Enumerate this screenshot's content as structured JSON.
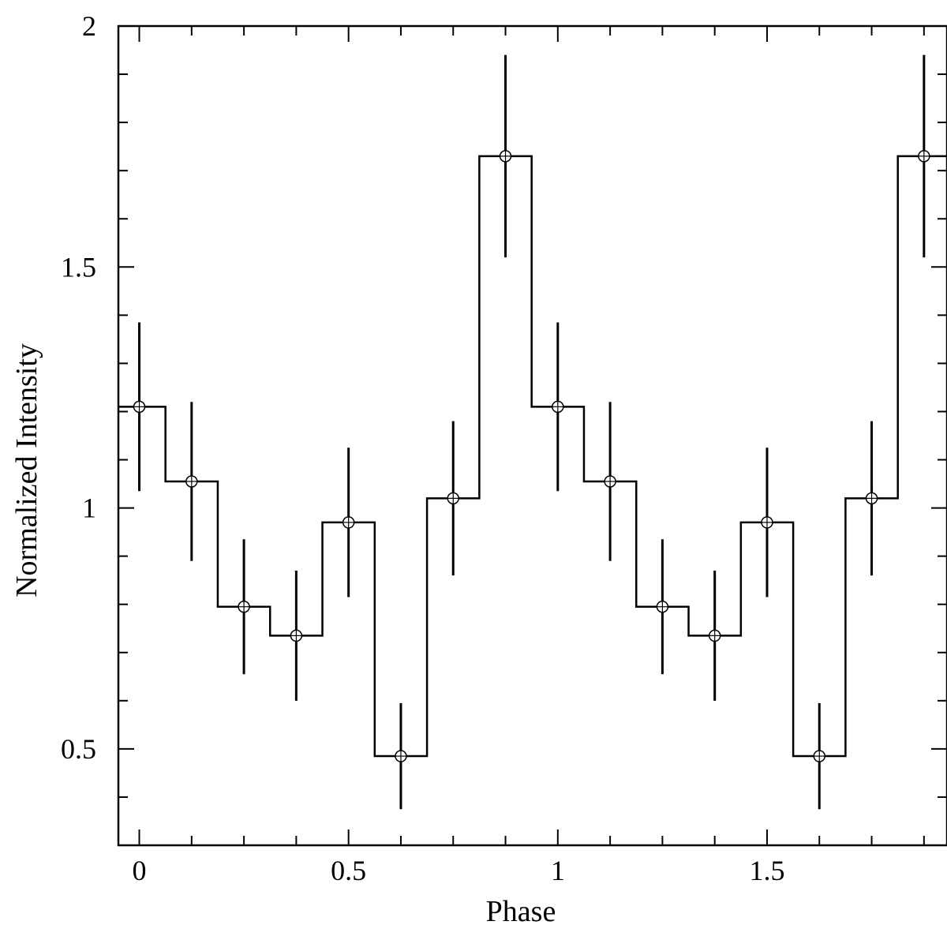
{
  "chart_data": {
    "type": "line",
    "style": "step-histogram-with-error-bars",
    "xlabel": "Phase",
    "ylabel": "Normalized Intensity",
    "xlim": [
      -0.05,
      1.93
    ],
    "ylim": [
      0.3,
      2.0
    ],
    "x_ticks": [
      0,
      0.5,
      1,
      1.5
    ],
    "x_tick_labels": [
      "0",
      "0.5",
      "1",
      "1.5"
    ],
    "y_ticks": [
      0.5,
      1,
      1.5,
      2
    ],
    "y_tick_labels": [
      "0.5",
      "1",
      "1.5",
      "2"
    ],
    "bin_width": 0.125,
    "series": [
      {
        "x": [
          0,
          0.125,
          0.25,
          0.375,
          0.5,
          0.625,
          0.75,
          0.875,
          1.0,
          1.125,
          1.25,
          1.375,
          1.5,
          1.625,
          1.75,
          1.875
        ],
        "y": [
          1.21,
          1.055,
          0.795,
          0.735,
          0.97,
          0.485,
          1.02,
          1.73,
          1.21,
          1.055,
          0.795,
          0.735,
          0.97,
          0.485,
          1.02,
          1.73
        ],
        "y_err": [
          0.175,
          0.165,
          0.14,
          0.135,
          0.155,
          0.11,
          0.16,
          0.21,
          0.175,
          0.165,
          0.14,
          0.135,
          0.155,
          0.11,
          0.16,
          0.21
        ]
      }
    ],
    "grid": false,
    "colors": {
      "line": "#000000",
      "background": "#ffffff"
    }
  }
}
